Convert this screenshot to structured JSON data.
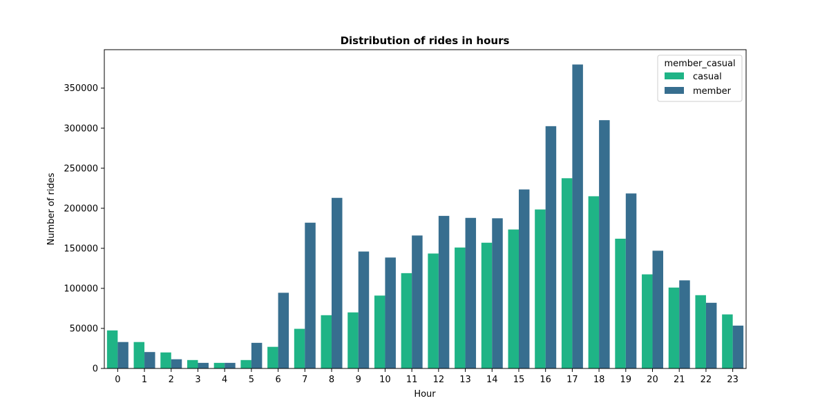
{
  "chart_data": {
    "type": "bar",
    "title": "Distribution of rides in hours",
    "xlabel": "Hour",
    "ylabel": "Number of rides",
    "categories": [
      "0",
      "1",
      "2",
      "3",
      "4",
      "5",
      "6",
      "7",
      "8",
      "9",
      "10",
      "11",
      "12",
      "13",
      "14",
      "15",
      "16",
      "17",
      "18",
      "19",
      "20",
      "21",
      "22",
      "23"
    ],
    "ylim": [
      0,
      398000
    ],
    "yticks": [
      0,
      50000,
      100000,
      150000,
      200000,
      250000,
      300000,
      350000
    ],
    "legend": {
      "title": "member_casual",
      "placement": "top-right"
    },
    "grid": false,
    "series": [
      {
        "name": "casual",
        "color": "#1fb486",
        "values": [
          47500,
          33000,
          20000,
          10500,
          7000,
          10500,
          27000,
          49500,
          66500,
          70000,
          91000,
          119000,
          143500,
          151000,
          157000,
          173500,
          198500,
          237500,
          215000,
          162000,
          117500,
          101000,
          91500,
          67500
        ]
      },
      {
        "name": "member",
        "color": "#376e8f",
        "values": [
          33000,
          20500,
          11500,
          7000,
          7000,
          32000,
          94500,
          182000,
          213000,
          146000,
          138500,
          166000,
          190500,
          188000,
          187500,
          223500,
          302500,
          379500,
          310000,
          218500,
          147000,
          110000,
          82000,
          53500
        ]
      }
    ]
  }
}
